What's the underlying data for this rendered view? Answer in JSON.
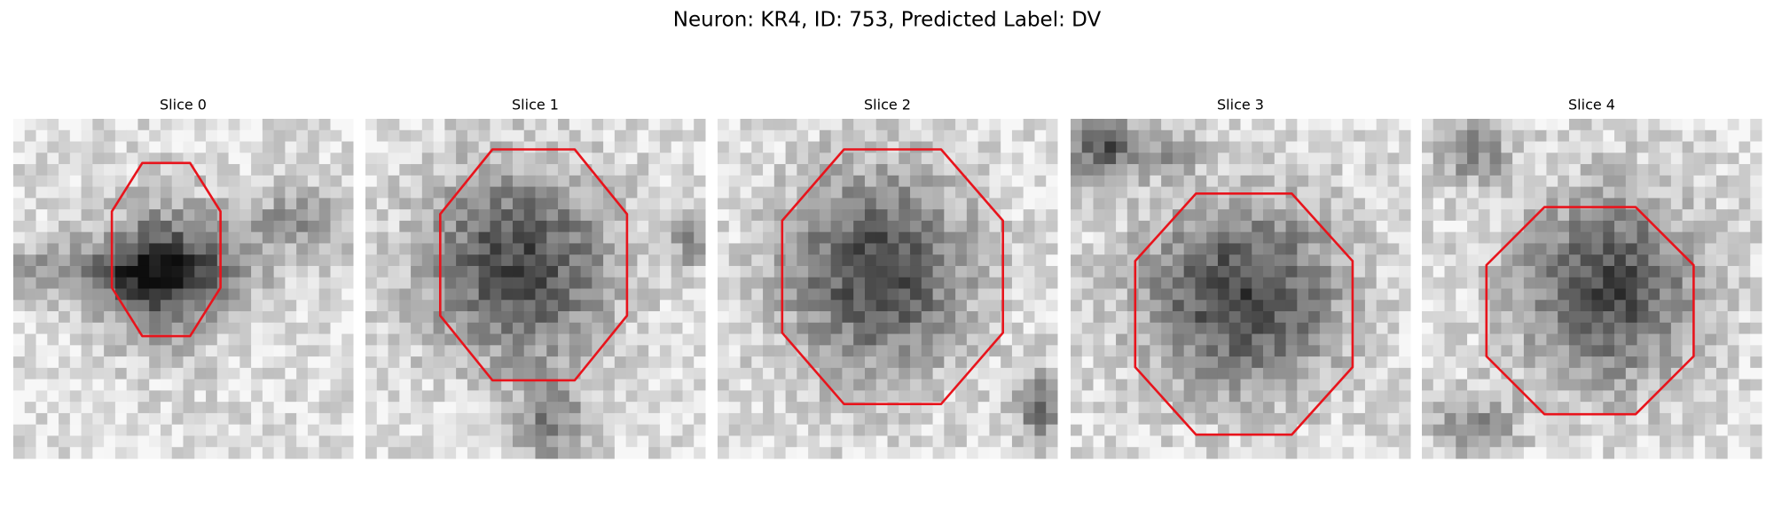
{
  "header": {
    "title": "Neuron: KR4, ID: 753, Predicted Label: DV"
  },
  "panels": [
    {
      "title": "Slice 0"
    },
    {
      "title": "Slice 1"
    },
    {
      "title": "Slice 2"
    },
    {
      "title": "Slice 3"
    },
    {
      "title": "Slice 4"
    }
  ]
}
